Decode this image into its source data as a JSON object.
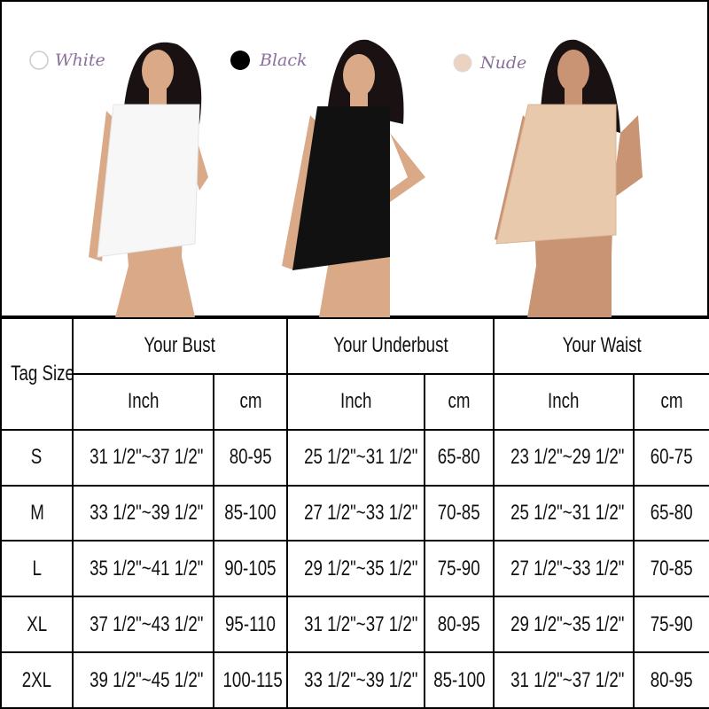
{
  "swatches": [
    {
      "label": "White"
    },
    {
      "label": "Black"
    },
    {
      "label": "Nude"
    }
  ],
  "table": {
    "tag_size_header": "Tag Size",
    "groups": [
      "Your Bust",
      "Your Underbust",
      "Your Waist"
    ],
    "units": [
      "Inch",
      "cm",
      "Inch",
      "cm",
      "Inch",
      "cm"
    ],
    "rows": [
      [
        "S",
        "31 1/2\"~37 1/2\"",
        "80-95",
        "25 1/2\"~31 1/2\"",
        "65-80",
        "23 1/2\"~29 1/2\"",
        "60-75"
      ],
      [
        "M",
        "33 1/2\"~39 1/2\"",
        "85-100",
        "27 1/2\"~33 1/2\"",
        "70-85",
        "25 1/2\"~31 1/2\"",
        "65-80"
      ],
      [
        "L",
        "35 1/2\"~41 1/2\"",
        "90-105",
        "29 1/2\"~35 1/2\"",
        "75-90",
        "27 1/2\"~33 1/2\"",
        "70-85"
      ],
      [
        "XL",
        "37 1/2\"~43 1/2\"",
        "95-110",
        "31 1/2\"~37 1/2\"",
        "80-95",
        "29 1/2\"~35 1/2\"",
        "75-90"
      ],
      [
        "2XL",
        "39 1/2\"~45 1/2\"",
        "100-115",
        "33 1/2\"~39 1/2\"",
        "85-100",
        "31 1/2\"~37 1/2\"",
        "80-95"
      ]
    ]
  }
}
